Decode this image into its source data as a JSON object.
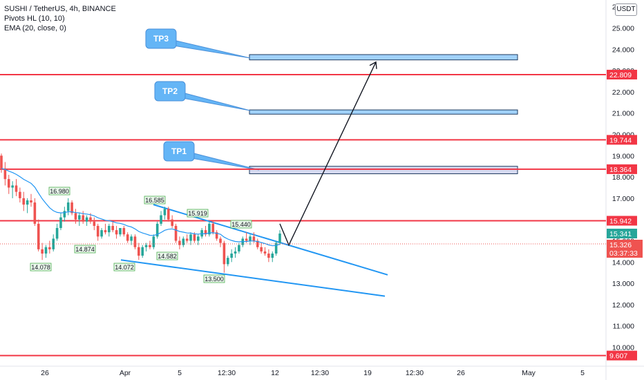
{
  "legend": {
    "symbol": "SUSHI / TetherUS, 4h, BINANCE",
    "indicator1": "Pivots HL (10, 10)",
    "indicator2": "EMA (20, close, 0)"
  },
  "currency": "USDT",
  "colors": {
    "up": "#26a69a",
    "down": "#ef5350",
    "ema": "#2196f3",
    "hline": "#f23645",
    "zone_fill": "#90caf9",
    "zone_border": "#1e3a5f",
    "tp_callout": "#64b5f6",
    "trendline": "#2196f3"
  },
  "chart_data": {
    "type": "candlestick",
    "title": "SUSHI / TetherUS, 4h, BINANCE",
    "ylim": [
      9.5,
      26.0
    ],
    "y_ticks": [
      "10.000",
      "11.000",
      "12.000",
      "13.000",
      "14.000",
      "15.000",
      "16.000",
      "17.000",
      "18.000",
      "19.000",
      "20.000",
      "21.000",
      "22.000",
      "23.000",
      "24.000",
      "25.000",
      "26.000"
    ],
    "x_ticks": [
      "26",
      "Apr",
      "5",
      "12:30",
      "12",
      "12:30",
      "19",
      "12:30",
      "26",
      "May",
      "5"
    ],
    "horizontal_levels": [
      "22.809",
      "19.744",
      "18.364",
      "15.942",
      "9.607"
    ],
    "current_price": "15.341",
    "last_close": "15.326",
    "countdown": "03:37:33",
    "pivots": [
      "16.980",
      "14.078",
      "14.874",
      "16.585",
      "14.072",
      "14.582",
      "15.919",
      "13.500",
      "15.440"
    ],
    "targets": [
      {
        "label": "TP1",
        "low": 18.15,
        "high": 18.5
      },
      {
        "label": "TP2",
        "low": 20.95,
        "high": 21.15
      },
      {
        "label": "TP3",
        "low": 23.5,
        "high": 23.75
      }
    ],
    "projection": {
      "from": 14.8,
      "to": 23.4
    },
    "trendline_upper": [
      16.7,
      13.4
    ],
    "trendline_lower": [
      14.1,
      12.4
    ],
    "candles": [
      [
        19.0,
        19.1,
        18.2,
        18.4
      ],
      [
        18.4,
        18.7,
        17.6,
        17.9
      ],
      [
        17.9,
        18.1,
        17.2,
        17.5
      ],
      [
        17.5,
        17.8,
        17.0,
        17.6
      ],
      [
        17.6,
        17.9,
        17.1,
        17.3
      ],
      [
        17.3,
        17.5,
        16.8,
        17.0
      ],
      [
        17.0,
        17.3,
        16.4,
        16.7
      ],
      [
        16.7,
        17.0,
        16.3,
        16.9
      ],
      [
        16.9,
        17.2,
        16.6,
        16.8
      ],
      [
        16.8,
        17.0,
        15.7,
        15.8
      ],
      [
        15.8,
        16.0,
        14.5,
        14.6
      ],
      [
        14.6,
        14.9,
        14.1,
        14.4
      ],
      [
        14.4,
        14.8,
        14.2,
        14.7
      ],
      [
        14.7,
        15.0,
        14.4,
        14.6
      ],
      [
        14.6,
        15.3,
        14.5,
        15.1
      ],
      [
        15.1,
        15.8,
        15.0,
        15.6
      ],
      [
        15.6,
        16.3,
        15.5,
        16.1
      ],
      [
        16.1,
        16.6,
        15.9,
        16.4
      ],
      [
        16.4,
        17.0,
        16.2,
        16.8
      ],
      [
        16.8,
        16.9,
        16.2,
        16.3
      ],
      [
        16.3,
        16.5,
        15.8,
        16.0
      ],
      [
        16.0,
        16.3,
        15.7,
        16.2
      ],
      [
        16.2,
        16.4,
        15.8,
        15.9
      ],
      [
        15.9,
        16.2,
        15.7,
        16.1
      ],
      [
        16.1,
        16.3,
        15.8,
        15.9
      ],
      [
        15.9,
        16.1,
        15.5,
        15.7
      ],
      [
        15.7,
        15.8,
        15.0,
        15.2
      ],
      [
        15.2,
        15.6,
        15.1,
        15.5
      ],
      [
        15.5,
        15.8,
        15.3,
        15.4
      ],
      [
        15.4,
        15.8,
        15.2,
        15.7
      ],
      [
        15.7,
        15.9,
        15.4,
        15.5
      ],
      [
        15.5,
        15.7,
        15.1,
        15.3
      ],
      [
        15.3,
        15.6,
        15.2,
        15.6
      ],
      [
        15.6,
        15.7,
        15.2,
        15.3
      ],
      [
        15.3,
        15.4,
        14.9,
        15.0
      ],
      [
        15.0,
        15.3,
        14.8,
        15.2
      ],
      [
        15.2,
        15.3,
        14.6,
        14.7
      ],
      [
        14.7,
        14.9,
        14.1,
        14.3
      ],
      [
        14.3,
        14.8,
        14.2,
        14.7
      ],
      [
        14.7,
        14.9,
        14.5,
        14.8
      ],
      [
        14.8,
        15.0,
        14.6,
        14.7
      ],
      [
        14.7,
        15.3,
        14.6,
        15.2
      ],
      [
        15.2,
        15.9,
        15.1,
        15.8
      ],
      [
        15.8,
        16.4,
        15.7,
        16.2
      ],
      [
        16.2,
        16.6,
        16.0,
        16.5
      ],
      [
        16.5,
        16.6,
        15.9,
        16.0
      ],
      [
        16.0,
        16.2,
        15.6,
        15.7
      ],
      [
        15.7,
        15.8,
        14.9,
        15.0
      ],
      [
        15.0,
        15.2,
        14.6,
        14.8
      ],
      [
        14.8,
        15.2,
        14.7,
        15.1
      ],
      [
        15.1,
        15.3,
        14.9,
        15.0
      ],
      [
        15.0,
        15.4,
        14.8,
        15.3
      ],
      [
        15.3,
        15.4,
        14.9,
        15.0
      ],
      [
        15.0,
        15.3,
        14.8,
        15.2
      ],
      [
        15.2,
        15.6,
        15.1,
        15.5
      ],
      [
        15.5,
        15.7,
        15.2,
        15.3
      ],
      [
        15.3,
        15.9,
        15.2,
        15.8
      ],
      [
        15.8,
        15.9,
        15.3,
        15.4
      ],
      [
        15.4,
        15.5,
        15.0,
        15.1
      ],
      [
        15.1,
        15.2,
        14.7,
        14.9
      ],
      [
        14.9,
        15.0,
        13.5,
        13.9
      ],
      [
        13.9,
        14.3,
        13.8,
        14.2
      ],
      [
        14.2,
        14.6,
        14.0,
        14.4
      ],
      [
        14.4,
        14.7,
        14.2,
        14.5
      ],
      [
        14.5,
        14.9,
        14.4,
        14.8
      ],
      [
        14.8,
        15.2,
        14.7,
        15.1
      ],
      [
        15.1,
        15.4,
        14.9,
        15.0
      ],
      [
        15.0,
        15.3,
        14.8,
        15.2
      ],
      [
        15.2,
        15.4,
        14.9,
        15.0
      ],
      [
        15.0,
        15.1,
        14.6,
        14.7
      ],
      [
        14.7,
        14.9,
        14.4,
        14.5
      ],
      [
        14.5,
        14.7,
        14.3,
        14.4
      ],
      [
        14.4,
        14.6,
        14.0,
        14.2
      ],
      [
        14.2,
        14.5,
        14.0,
        14.4
      ],
      [
        14.4,
        15.0,
        14.3,
        14.9
      ],
      [
        14.9,
        15.5,
        14.8,
        15.34
      ]
    ]
  }
}
